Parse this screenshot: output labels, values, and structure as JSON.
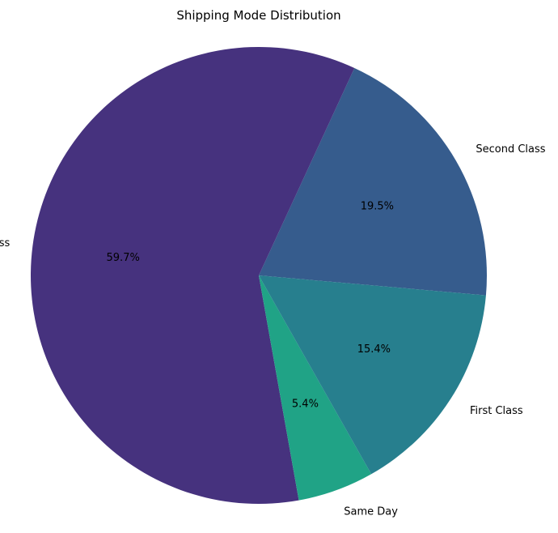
{
  "chart_data": {
    "type": "pie",
    "title": "Shipping Mode Distribution",
    "categories": [
      "Second Class",
      "Standard Class",
      "Same Day",
      "First Class"
    ],
    "values": [
      19.5,
      59.7,
      5.4,
      15.4
    ],
    "percent_labels": [
      "19.5%",
      "59.7%",
      "5.4%",
      "15.4%"
    ],
    "colors": [
      "#365C8D",
      "#46327E",
      "#20A386",
      "#277F8E"
    ],
    "legend": false
  }
}
